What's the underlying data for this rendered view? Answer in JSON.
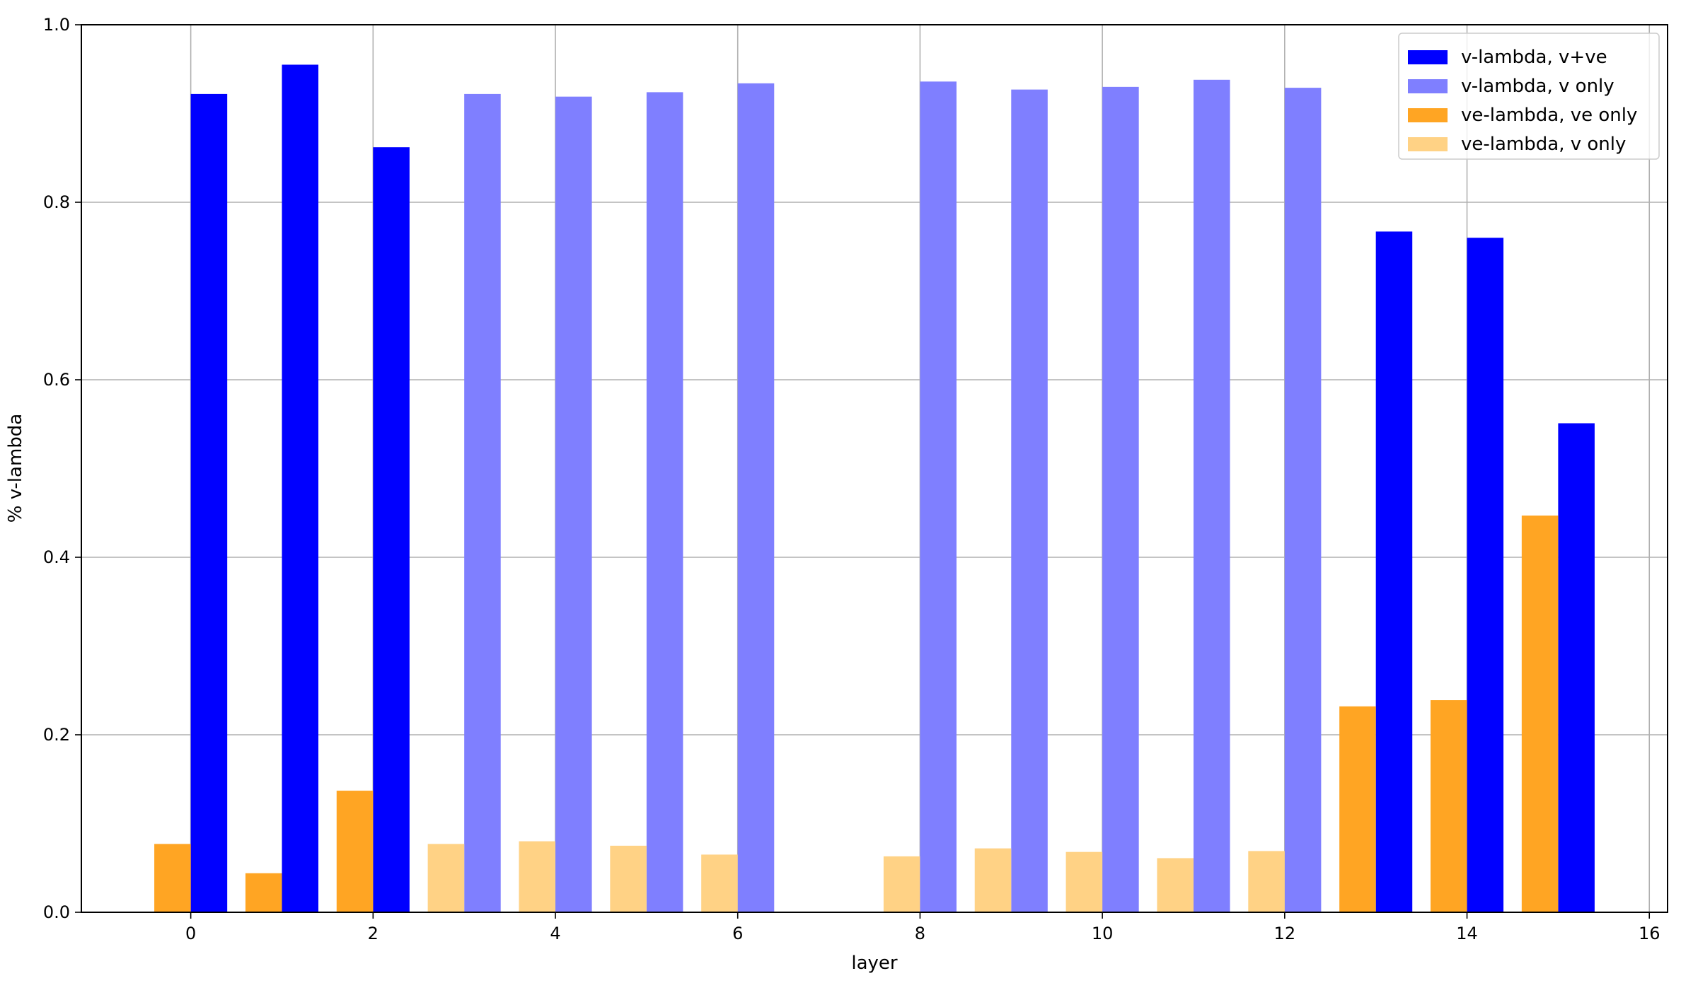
{
  "chart_data": {
    "type": "bar",
    "xlabel": "layer",
    "ylabel": "% v-lambda",
    "xlim": [
      -1.2,
      16.2
    ],
    "ylim": [
      0,
      1.0
    ],
    "x_ticks": [
      0,
      2,
      4,
      6,
      8,
      10,
      12,
      14,
      16
    ],
    "y_ticks": [
      0.0,
      0.2,
      0.4,
      0.6,
      0.8,
      1.0
    ],
    "grid": true,
    "legend_position": "top-right",
    "layers": [
      0,
      1,
      2,
      3,
      4,
      5,
      6,
      7,
      8,
      9,
      10,
      11,
      12,
      13,
      14,
      15
    ],
    "series": [
      {
        "name": "v-lambda, v+ve",
        "color": "#0000ff",
        "side": "right",
        "values": [
          0.922,
          0.955,
          0.862,
          null,
          null,
          null,
          null,
          null,
          null,
          null,
          null,
          null,
          null,
          0.767,
          0.76,
          0.551
        ]
      },
      {
        "name": "v-lambda, v only",
        "color": "#7f7fff",
        "side": "right",
        "values": [
          null,
          null,
          null,
          0.922,
          0.919,
          0.924,
          0.934,
          null,
          0.936,
          0.927,
          0.93,
          0.938,
          0.929,
          null,
          null,
          null
        ]
      },
      {
        "name": "ve-lambda, ve only",
        "color": "#ffa523",
        "side": "left",
        "values": [
          0.077,
          0.044,
          0.137,
          null,
          null,
          null,
          null,
          null,
          null,
          null,
          null,
          null,
          null,
          0.232,
          0.239,
          0.447
        ]
      },
      {
        "name": "ve-lambda, v only",
        "color": "#ffd285",
        "side": "left",
        "values": [
          null,
          null,
          null,
          0.077,
          0.08,
          0.075,
          0.065,
          null,
          0.063,
          0.072,
          0.068,
          0.061,
          0.069,
          null,
          null,
          null
        ]
      }
    ]
  }
}
